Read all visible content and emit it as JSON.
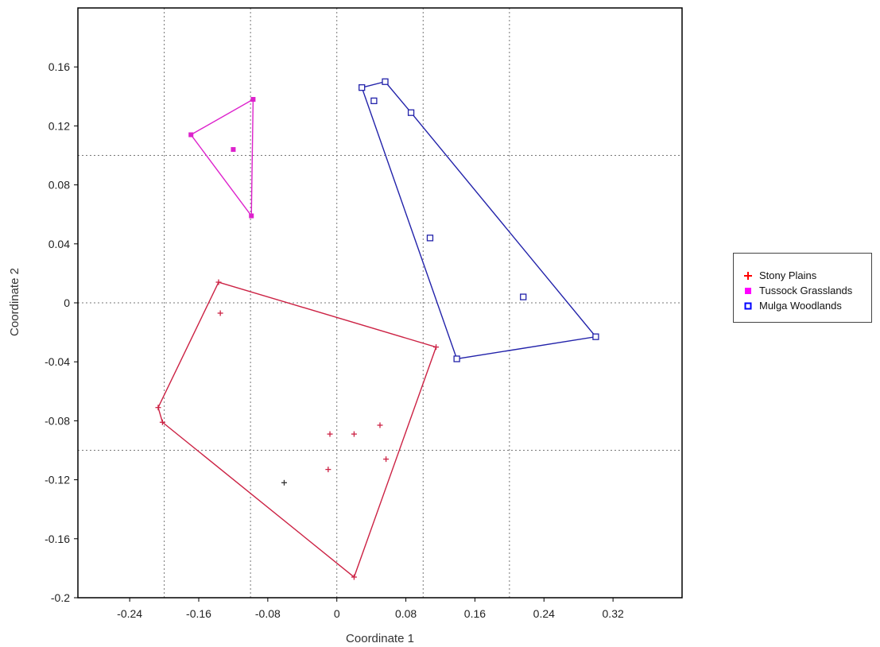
{
  "chart_data": {
    "type": "scatter",
    "title": "",
    "xlabel": "Coordinate 1",
    "ylabel": "Coordinate 2",
    "xlim": [
      -0.3,
      0.4
    ],
    "ylim": [
      -0.2,
      0.2
    ],
    "x_ticks": [
      "-0.24",
      "-0.16",
      "-0.08",
      "0",
      "0.08",
      "0.16",
      "0.24",
      "0.32"
    ],
    "y_ticks": [
      "0.16",
      "0.12",
      "0.08",
      "0.04",
      "0",
      "-0.04",
      "-0.08",
      "-0.12",
      "-0.16",
      "-0.2"
    ],
    "grid": "dotted lines at x = -0.2, -0.1, 0, 0.1, 0.2 and y = -0.1, 0, 0.1",
    "legend_position": "right",
    "series": [
      {
        "name": "Stony Plains",
        "color": "#cc2244",
        "marker": "plus",
        "points": [
          [
            -0.137,
            0.014
          ],
          [
            -0.135,
            -0.007
          ],
          [
            0.115,
            -0.03
          ],
          [
            -0.207,
            -0.071
          ],
          [
            -0.202,
            -0.081
          ],
          [
            -0.008,
            -0.089
          ],
          [
            0.02,
            -0.089
          ],
          [
            0.05,
            -0.083
          ],
          [
            0.057,
            -0.106
          ],
          [
            -0.01,
            -0.113
          ],
          [
            -0.061,
            -0.122
          ],
          [
            0.02,
            -0.186
          ]
        ],
        "hull": [
          [
            -0.137,
            0.014
          ],
          [
            0.115,
            -0.03
          ],
          [
            0.02,
            -0.186
          ],
          [
            -0.202,
            -0.081
          ],
          [
            -0.207,
            -0.071
          ]
        ]
      },
      {
        "name": "Tussock Grasslands",
        "color": "#dd22cc",
        "marker": "filled-square",
        "points": [
          [
            -0.097,
            0.138
          ],
          [
            -0.169,
            0.114
          ],
          [
            -0.12,
            0.104
          ],
          [
            -0.099,
            0.059
          ]
        ],
        "hull": [
          [
            -0.169,
            0.114
          ],
          [
            -0.097,
            0.138
          ],
          [
            -0.099,
            0.059
          ]
        ]
      },
      {
        "name": "Mulga Woodlands",
        "color": "#2222aa",
        "marker": "open-square",
        "points": [
          [
            0.029,
            0.146
          ],
          [
            0.056,
            0.15
          ],
          [
            0.043,
            0.137
          ],
          [
            0.086,
            0.129
          ],
          [
            0.108,
            0.044
          ],
          [
            0.216,
            0.004
          ],
          [
            0.3,
            -0.023
          ],
          [
            0.139,
            -0.038
          ]
        ],
        "hull": [
          [
            0.029,
            0.146
          ],
          [
            0.056,
            0.15
          ],
          [
            0.086,
            0.129
          ],
          [
            0.3,
            -0.023
          ],
          [
            0.139,
            -0.038
          ]
        ]
      }
    ]
  },
  "legend": {
    "items": [
      {
        "label": "Stony Plains",
        "symbol": "+",
        "color": "#ff0000"
      },
      {
        "label": "Tussock Grasslands",
        "symbol": "■",
        "color": "#ff00ff"
      },
      {
        "label": "Mulga Woodlands",
        "symbol": "□",
        "color": "#0000ff"
      }
    ]
  }
}
